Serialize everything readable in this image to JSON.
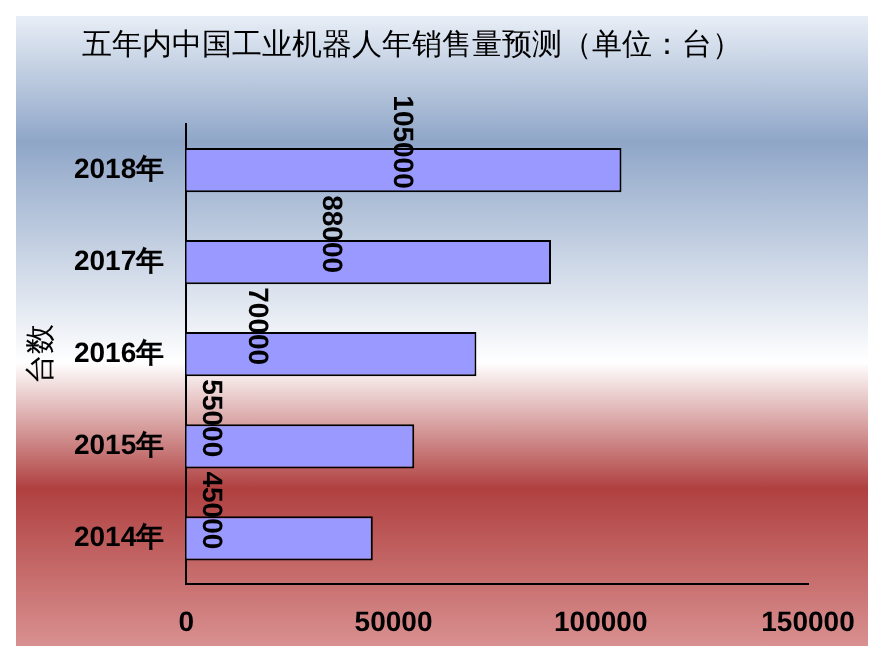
{
  "chart_data": {
    "type": "bar",
    "orientation": "horizontal",
    "title": "五年内中国工业机器人年销售量预测（单位：台）",
    "ylabel": "台数",
    "categories": [
      "2018年",
      "2017年",
      "2016年",
      "2015年",
      "2014年"
    ],
    "values": [
      105000,
      88000,
      70000,
      55000,
      45000
    ],
    "color": "#9999ff",
    "xlim": [
      0,
      150000
    ],
    "xticks": [
      0,
      50000,
      100000,
      150000
    ],
    "grid": false,
    "legend": false,
    "data_labels": true
  }
}
